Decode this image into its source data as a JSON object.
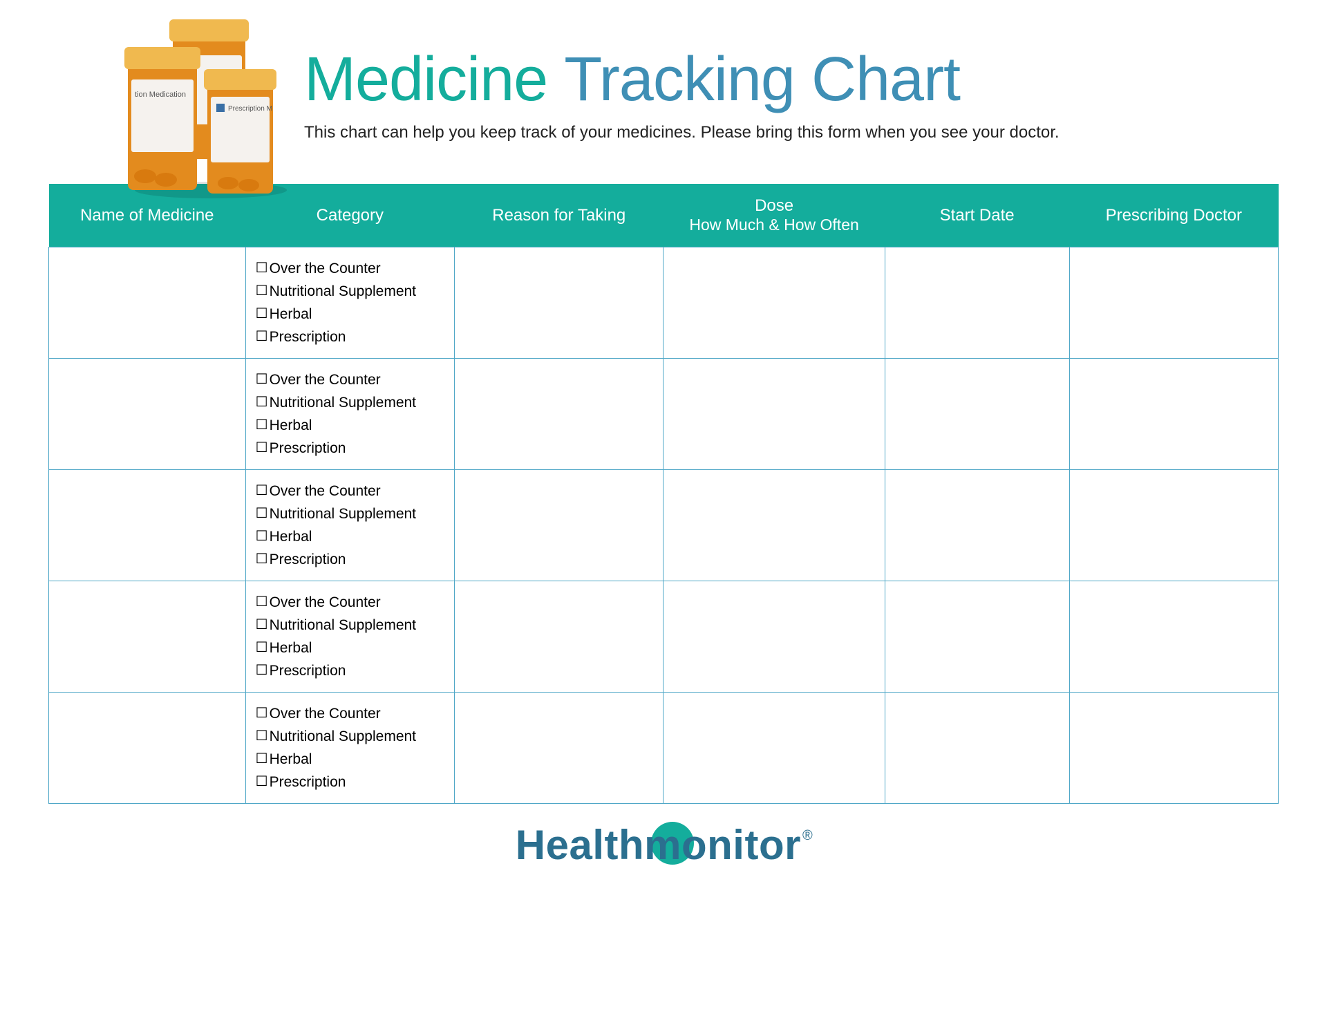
{
  "colors": {
    "header_bg": "#14ad9c",
    "title_accent": "#14ad9c",
    "title_light": "#3f8fb5",
    "border": "#4fa7c7",
    "logo_text": "#2b6f8f",
    "logo_circle": "#14ad9c",
    "bottle_body": "#e38b1e",
    "bottle_cap": "#f0b94f",
    "bottle_label": "#f5f2ee"
  },
  "title": {
    "part1": "Medicine",
    "part2": "Tracking Chart"
  },
  "subtitle": "This chart can help you keep track of your medicines. Please bring this form when you see your doctor.",
  "table": {
    "columns": [
      "Name of Medicine",
      "Category",
      "Reason for Taking",
      "Dose\nHow Much & How Often",
      "Start Date",
      "Prescribing Doctor"
    ],
    "col_widths_pct": [
      16,
      17,
      17,
      18,
      15,
      17
    ],
    "row_count": 5,
    "category_options": [
      "Over the Counter",
      "Nutritional Supplement",
      "Herbal",
      "Prescription"
    ]
  },
  "logo": {
    "part1": "Health",
    "part2": "monitor",
    "registered": "®"
  }
}
